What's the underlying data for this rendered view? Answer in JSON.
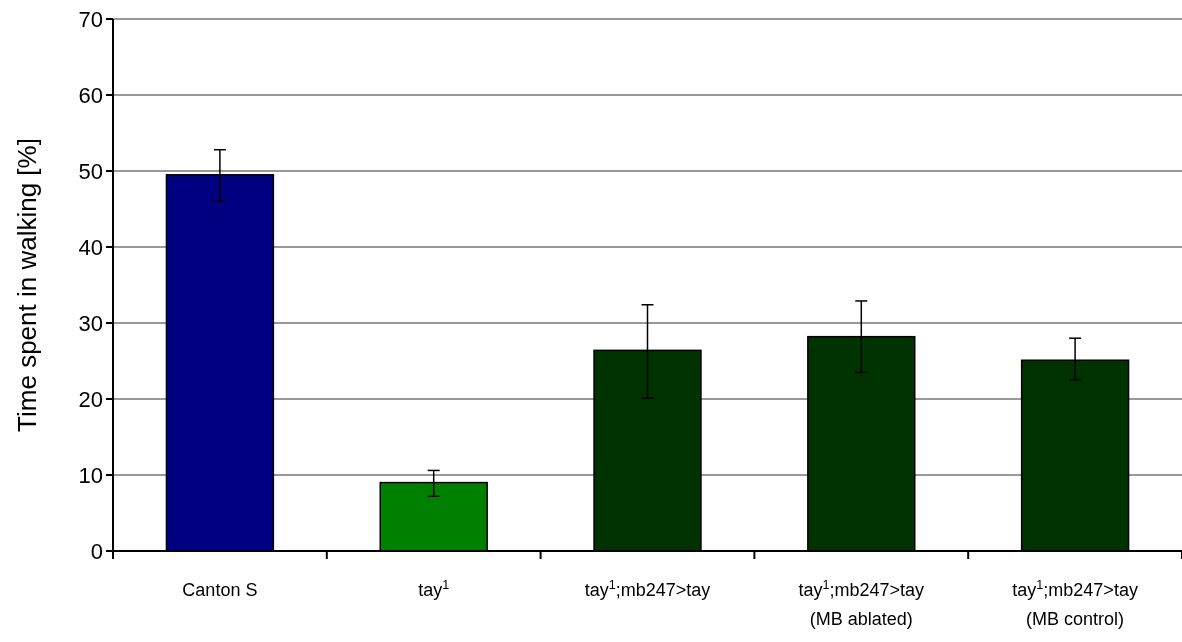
{
  "chart_data": {
    "type": "bar",
    "ylabel": "Time spent in walking [%]",
    "categories": [
      "Canton S",
      "tay$^{1}$",
      "tay$^{1}$;mb247>tay",
      "tay$^{1}$;mb247>tay\n(MB ablated)",
      "tay$^{1}$;mb247>tay\n(MB control)"
    ],
    "values": [
      49.5,
      9.0,
      26.4,
      28.2,
      25.1
    ],
    "colors": [
      "#000080",
      "#008000",
      "#003300",
      "#003300",
      "#003300"
    ],
    "errors": [
      [
        46.0,
        52.8
      ],
      [
        7.2,
        10.6
      ],
      [
        20.1,
        32.4
      ],
      [
        23.5,
        32.9
      ],
      [
        22.5,
        28.0
      ]
    ],
    "ylim": [
      0,
      70
    ],
    "yticks": [
      0,
      10,
      20,
      30,
      40,
      50,
      60,
      70
    ],
    "grid": "y"
  }
}
